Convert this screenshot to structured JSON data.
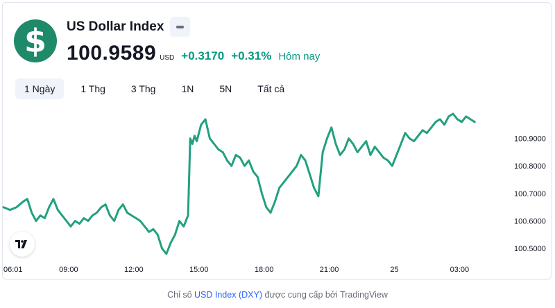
{
  "symbol": {
    "title": "US Dollar Index",
    "logo_glyph": "$",
    "logo_color": "#1e8a6a",
    "price": "100.9589",
    "currency": "USD",
    "change_abs": "+0.3170",
    "change_pct": "+0.31%",
    "period_label": "Hôm nay",
    "positive_color": "#089981"
  },
  "tabs": [
    {
      "label": "1 Ngày",
      "active": true
    },
    {
      "label": "1 Thg",
      "active": false
    },
    {
      "label": "3 Thg",
      "active": false
    },
    {
      "label": "1N",
      "active": false
    },
    {
      "label": "5N",
      "active": false
    },
    {
      "label": "Tất cả",
      "active": false
    }
  ],
  "chart_data": {
    "type": "line",
    "title": "",
    "xlabel": "",
    "ylabel": "",
    "line_color": "#22a07f",
    "x_tick_labels": [
      "06:01",
      "09:00",
      "12:00",
      "15:00",
      "18:00",
      "21:00",
      "25",
      "03:00"
    ],
    "x_tick_hours": [
      0,
      3,
      6,
      9,
      12,
      15,
      18,
      21
    ],
    "y_ticks": [
      100.5,
      100.6,
      100.7,
      100.8,
      100.9
    ],
    "y_tick_labels": [
      "100.5000",
      "100.6000",
      "100.7000",
      "100.8000",
      "100.9000"
    ],
    "xlim": [
      0,
      23
    ],
    "ylim": [
      100.47,
      101.0
    ],
    "grid": false,
    "series": [
      {
        "x": [
          0,
          0.3,
          0.6,
          0.9,
          1.1,
          1.3,
          1.5,
          1.7,
          1.9,
          2.1,
          2.3,
          2.5,
          2.7,
          2.9,
          3.1,
          3.3,
          3.5,
          3.7,
          3.9,
          4.1,
          4.3,
          4.5,
          4.7,
          4.9,
          5.1,
          5.3,
          5.5,
          5.7,
          5.9,
          6.1,
          6.3,
          6.5,
          6.7,
          6.9,
          7.1,
          7.3,
          7.5,
          7.7,
          7.9,
          8.1,
          8.3,
          8.5,
          8.6,
          8.7,
          8.8,
          8.9,
          9.0,
          9.1,
          9.3,
          9.5,
          9.7,
          9.9,
          10.1,
          10.3,
          10.5,
          10.7,
          10.9,
          11.1,
          11.3,
          11.5,
          11.7,
          11.9,
          12.1,
          12.3,
          12.5,
          12.7,
          12.9,
          13.1,
          13.3,
          13.5,
          13.7,
          13.9,
          14.1,
          14.3,
          14.5,
          14.7,
          14.9,
          15.0,
          15.1,
          15.3,
          15.5,
          15.7,
          15.9,
          16.1,
          16.3,
          16.5,
          16.7,
          16.9,
          17.1,
          17.3,
          17.5,
          17.7,
          17.9,
          18.1,
          18.3,
          18.5,
          18.7,
          18.9,
          19.1,
          19.3,
          19.5,
          19.7,
          19.9,
          20.1,
          20.3,
          20.5,
          20.7,
          20.9,
          21.1,
          21.3,
          21.5,
          21.7
        ],
        "y": [
          100.65,
          100.64,
          100.65,
          100.67,
          100.68,
          100.63,
          100.6,
          100.62,
          100.61,
          100.65,
          100.68,
          100.64,
          100.62,
          100.6,
          100.58,
          100.6,
          100.59,
          100.61,
          100.6,
          100.62,
          100.63,
          100.65,
          100.66,
          100.62,
          100.6,
          100.64,
          100.66,
          100.63,
          100.62,
          100.61,
          100.6,
          100.58,
          100.56,
          100.57,
          100.55,
          100.5,
          100.48,
          100.52,
          100.55,
          100.6,
          100.58,
          100.62,
          100.9,
          100.88,
          100.91,
          100.89,
          100.92,
          100.95,
          100.97,
          100.9,
          100.88,
          100.86,
          100.85,
          100.82,
          100.8,
          100.84,
          100.83,
          100.8,
          100.82,
          100.78,
          100.76,
          100.7,
          100.65,
          100.63,
          100.67,
          100.72,
          100.74,
          100.76,
          100.78,
          100.8,
          100.84,
          100.82,
          100.77,
          100.72,
          100.69,
          100.85,
          100.9,
          100.92,
          100.94,
          100.88,
          100.84,
          100.86,
          100.9,
          100.88,
          100.85,
          100.87,
          100.89,
          100.84,
          100.87,
          100.85,
          100.83,
          100.82,
          100.8,
          100.84,
          100.88,
          100.92,
          100.9,
          100.89,
          100.91,
          100.93,
          100.92,
          100.94,
          100.96,
          100.97,
          100.95,
          100.98,
          100.99,
          100.97,
          100.96,
          100.98,
          100.97,
          100.96
        ]
      }
    ]
  },
  "footer": {
    "prefix": "Chỉ số ",
    "link1": "USD Index",
    "link2": "(DXY)",
    "mid": " được cung cấp bởi ",
    "provider": "TradingView"
  },
  "icons": {
    "tradingview_logo": "tradingview-logo-icon",
    "minus": "minus-icon"
  }
}
